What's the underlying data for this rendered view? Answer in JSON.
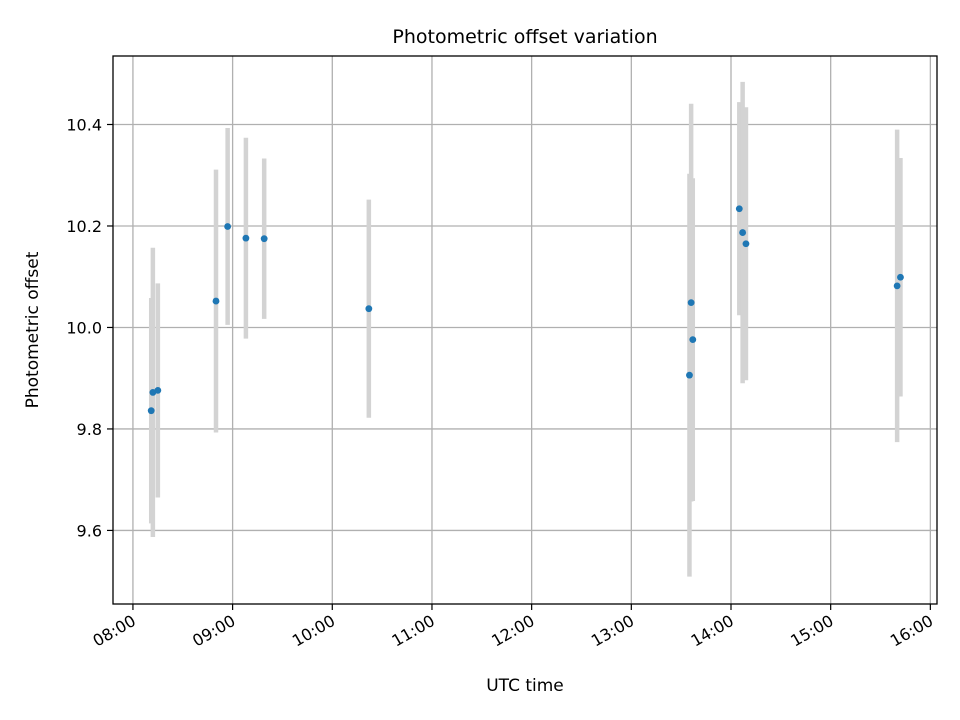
{
  "chart_data": {
    "type": "scatter",
    "title": "Photometric offset variation",
    "xlabel": "UTC time",
    "ylabel": "Photometric offset",
    "x_ticks": [
      "08:00",
      "09:00",
      "10:00",
      "11:00",
      "12:00",
      "13:00",
      "14:00",
      "15:00",
      "16:00"
    ],
    "y_ticks": [
      "9.6",
      "9.8",
      "10.0",
      "10.2",
      "10.4"
    ],
    "xlim": [
      "07:48",
      "16:04"
    ],
    "ylim": [
      9.455,
      10.535
    ],
    "grid": true,
    "marker_color": "#1f77b4",
    "errorbar_color": "#d3d3d3",
    "points": [
      {
        "time": "08:11",
        "y": 9.836,
        "err": 0.222
      },
      {
        "time": "08:12",
        "y": 9.872,
        "err": 0.285
      },
      {
        "time": "08:15",
        "y": 9.876,
        "err": 0.211
      },
      {
        "time": "08:50",
        "y": 10.052,
        "err": 0.259
      },
      {
        "time": "08:57",
        "y": 10.199,
        "err": 0.194
      },
      {
        "time": "09:08",
        "y": 10.176,
        "err": 0.198
      },
      {
        "time": "09:19",
        "y": 10.175,
        "err": 0.158
      },
      {
        "time": "10:22",
        "y": 10.037,
        "err": 0.215
      },
      {
        "time": "13:35",
        "y": 9.906,
        "err": 0.397
      },
      {
        "time": "13:36",
        "y": 10.049,
        "err": 0.392
      },
      {
        "time": "13:37",
        "y": 9.976,
        "err": 0.318
      },
      {
        "time": "14:05",
        "y": 10.234,
        "err": 0.21
      },
      {
        "time": "14:07",
        "y": 10.187,
        "err": 0.297
      },
      {
        "time": "14:09",
        "y": 10.165,
        "err": 0.269
      },
      {
        "time": "15:40",
        "y": 10.082,
        "err": 0.308
      },
      {
        "time": "15:42",
        "y": 10.099,
        "err": 0.235
      }
    ]
  }
}
